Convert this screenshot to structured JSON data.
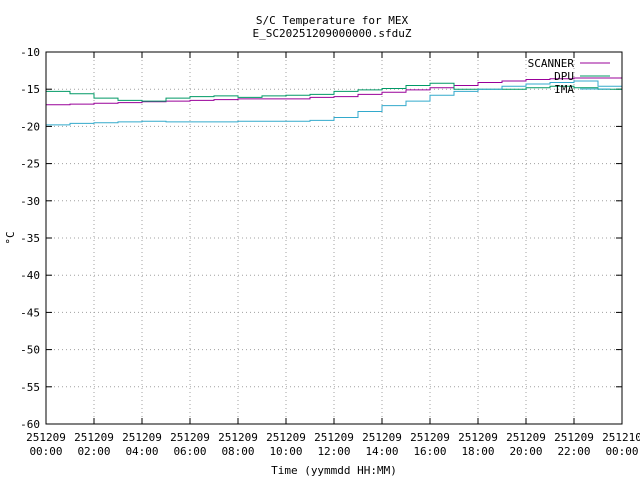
{
  "chart_data": {
    "type": "line",
    "title": "S/C Temperature for MEX",
    "subtitle": "E_SC20251209000000.sfduZ",
    "xlabel": "Time (yymmdd HH:MM)",
    "ylabel": "°C",
    "xlim": [
      0,
      24
    ],
    "ylim": [
      -60,
      -10
    ],
    "yticks": [
      -10,
      -15,
      -20,
      -25,
      -30,
      -35,
      -40,
      -45,
      -50,
      -55,
      -60
    ],
    "xticks": [
      {
        "x": 0,
        "date": "251209",
        "time": "00:00"
      },
      {
        "x": 2,
        "date": "251209",
        "time": "02:00"
      },
      {
        "x": 4,
        "date": "251209",
        "time": "04:00"
      },
      {
        "x": 6,
        "date": "251209",
        "time": "06:00"
      },
      {
        "x": 8,
        "date": "251209",
        "time": "08:00"
      },
      {
        "x": 10,
        "date": "251209",
        "time": "10:00"
      },
      {
        "x": 12,
        "date": "251209",
        "time": "12:00"
      },
      {
        "x": 14,
        "date": "251209",
        "time": "14:00"
      },
      {
        "x": 16,
        "date": "251209",
        "time": "16:00"
      },
      {
        "x": 18,
        "date": "251209",
        "time": "18:00"
      },
      {
        "x": 20,
        "date": "251209",
        "time": "20:00"
      },
      {
        "x": 22,
        "date": "251209",
        "time": "22:00"
      },
      {
        "x": 24,
        "date": "251210",
        "time": "00:00"
      }
    ],
    "grid": true,
    "legend_position": "top-right",
    "series": [
      {
        "name": "SCANNER",
        "color": "#990099",
        "points": [
          [
            0,
            -17.1
          ],
          [
            1,
            -17.0
          ],
          [
            2,
            -16.9
          ],
          [
            3,
            -16.8
          ],
          [
            4,
            -16.7
          ],
          [
            5,
            -16.6
          ],
          [
            6,
            -16.5
          ],
          [
            7,
            -16.4
          ],
          [
            8,
            -16.3
          ],
          [
            10,
            -16.3
          ],
          [
            11,
            -16.1
          ],
          [
            12,
            -16.0
          ],
          [
            13,
            -15.7
          ],
          [
            14,
            -15.4
          ],
          [
            15,
            -15.1
          ],
          [
            16,
            -14.8
          ],
          [
            17,
            -14.5
          ],
          [
            18,
            -14.1
          ],
          [
            19,
            -13.9
          ],
          [
            20,
            -13.7
          ],
          [
            21,
            -13.6
          ],
          [
            22,
            -13.5
          ],
          [
            23,
            -13.5
          ],
          [
            24,
            -13.5
          ]
        ]
      },
      {
        "name": "DPU",
        "color": "#009966",
        "points": [
          [
            0,
            -15.3
          ],
          [
            1,
            -15.6
          ],
          [
            2,
            -16.2
          ],
          [
            3,
            -16.5
          ],
          [
            4,
            -16.6
          ],
          [
            5,
            -16.2
          ],
          [
            6,
            -16.0
          ],
          [
            7,
            -15.9
          ],
          [
            8,
            -16.1
          ],
          [
            9,
            -15.9
          ],
          [
            10,
            -15.8
          ],
          [
            11,
            -15.7
          ],
          [
            12,
            -15.3
          ],
          [
            13,
            -15.1
          ],
          [
            14,
            -14.9
          ],
          [
            15,
            -14.5
          ],
          [
            16,
            -14.2
          ],
          [
            17,
            -15.0
          ],
          [
            18,
            -15.0
          ],
          [
            19,
            -15.0
          ],
          [
            20,
            -14.8
          ],
          [
            21,
            -14.6
          ],
          [
            22,
            -14.8
          ],
          [
            23,
            -15.0
          ],
          [
            24,
            -15.1
          ]
        ]
      },
      {
        "name": "IMA",
        "color": "#33aacc",
        "points": [
          [
            0,
            -19.8
          ],
          [
            1,
            -19.6
          ],
          [
            2,
            -19.5
          ],
          [
            3,
            -19.4
          ],
          [
            4,
            -19.3
          ],
          [
            5,
            -19.4
          ],
          [
            6,
            -19.4
          ],
          [
            7,
            -19.4
          ],
          [
            8,
            -19.3
          ],
          [
            9,
            -19.3
          ],
          [
            10,
            -19.3
          ],
          [
            11,
            -19.2
          ],
          [
            12,
            -18.8
          ],
          [
            13,
            -18.0
          ],
          [
            14,
            -17.2
          ],
          [
            15,
            -16.6
          ],
          [
            16,
            -15.8
          ],
          [
            17,
            -15.3
          ],
          [
            18,
            -15.0
          ],
          [
            19,
            -14.6
          ],
          [
            20,
            -14.3
          ],
          [
            21,
            -14.1
          ],
          [
            22,
            -13.9
          ],
          [
            23,
            -14.6
          ],
          [
            24,
            -15.3
          ]
        ]
      }
    ]
  }
}
